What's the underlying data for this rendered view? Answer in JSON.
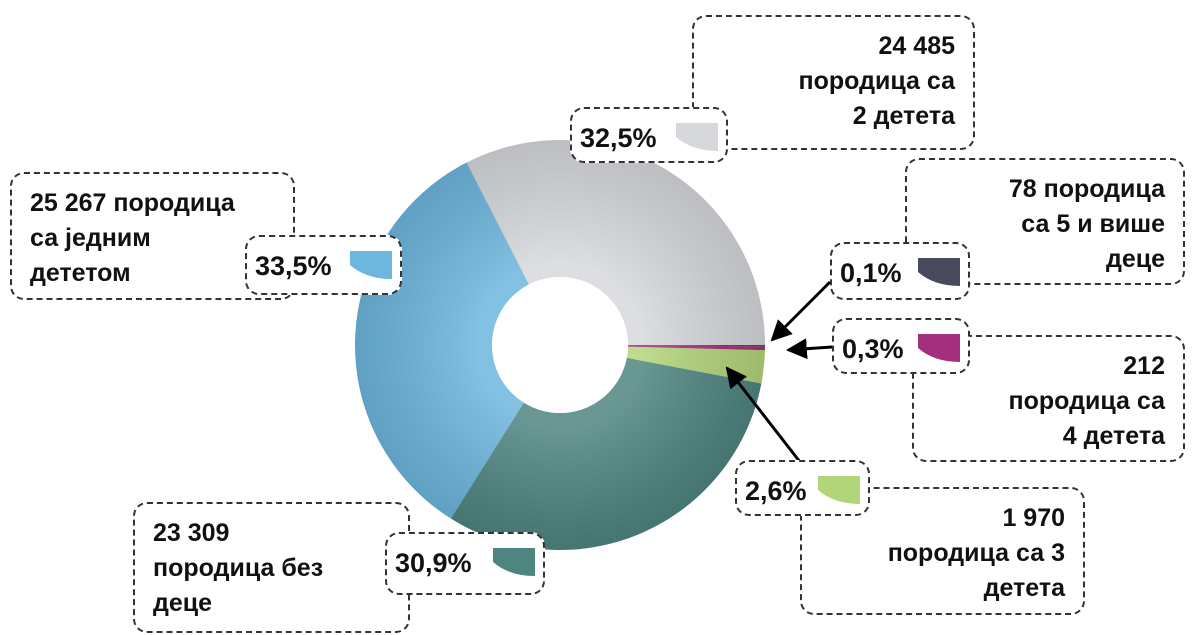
{
  "chart_data": {
    "type": "donut",
    "categories": [
      "24 485\nпородица са\n2 детета",
      "25 267 породица\nса једним\nдететом",
      "23 309\nпородица без\nдеце",
      "1 970\nпородица са 3\nдетета",
      "212\nпородица са\n4 детета",
      "78 породица\nса 5 и више\nдеце"
    ],
    "values": [
      32.5,
      33.5,
      30.9,
      2.6,
      0.3,
      0.1
    ],
    "value_labels": [
      "32,5%",
      "33,5%",
      "30,9%",
      "2,6%",
      "0,3%",
      "0,1%"
    ],
    "colors": [
      "#d6d8dc",
      "#6db6de",
      "#4f8581",
      "#b3d57a",
      "#a3307c",
      "#4a4a5e"
    ]
  }
}
